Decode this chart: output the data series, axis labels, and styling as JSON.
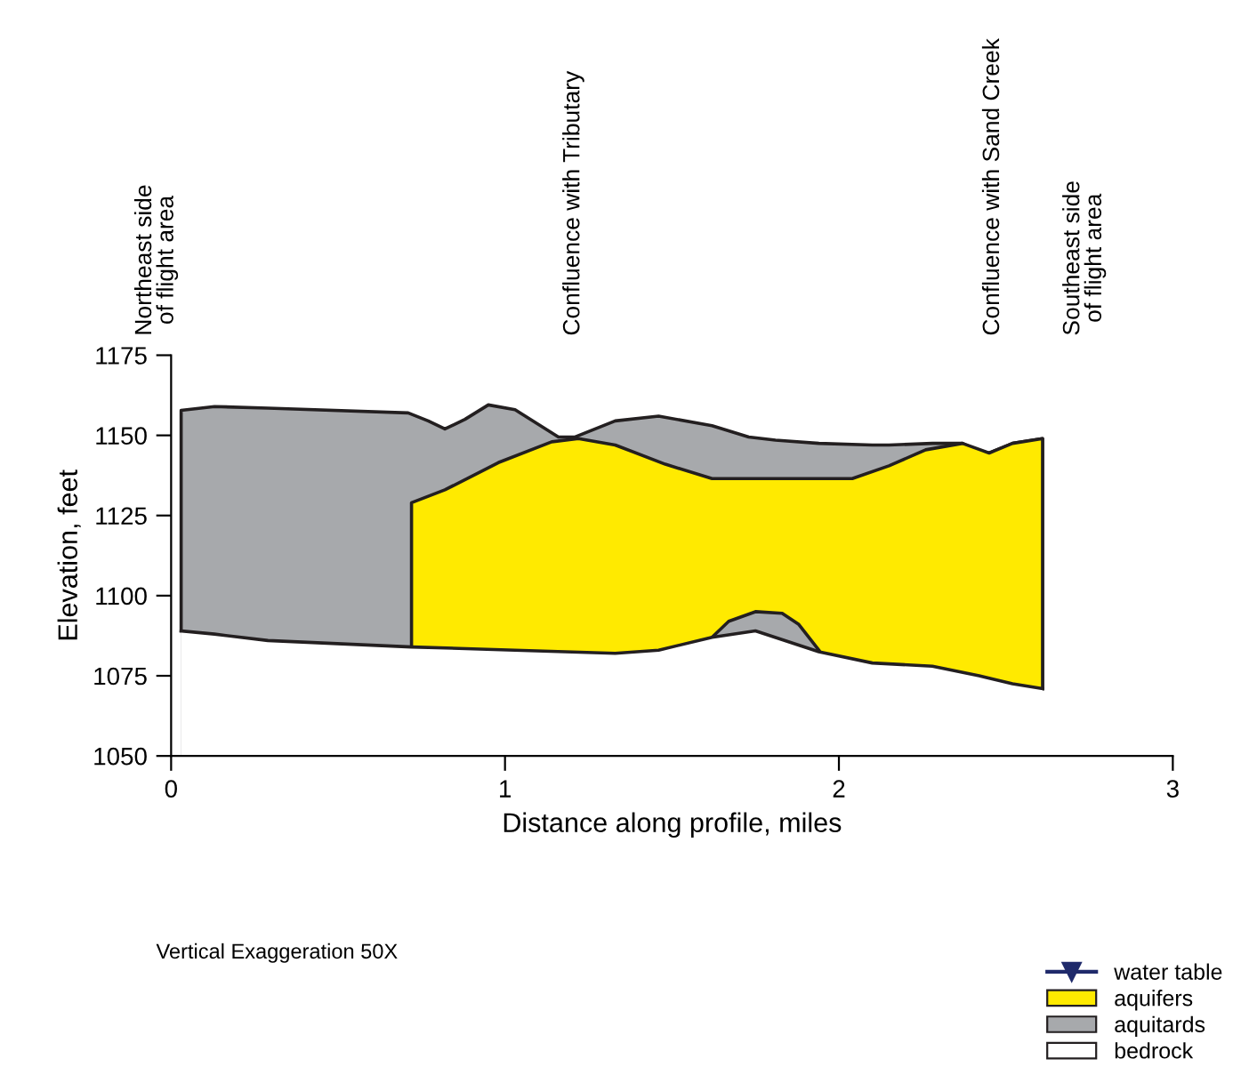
{
  "chart_data": {
    "type": "area",
    "xlabel": "Distance along profile, miles",
    "ylabel": "Elevation, feet",
    "xlim": [
      0,
      3
    ],
    "xticks": [
      0,
      1,
      2,
      3
    ],
    "ylim": [
      1050,
      1175
    ],
    "yticks": [
      1050,
      1075,
      1100,
      1125,
      1150,
      1175
    ],
    "grid": false,
    "legend": "bottom right",
    "annotations": [
      "Northeast side\nof flight area",
      "Confluence with Tributary",
      "Confluence with Sand Creek",
      "Southeast side\nof flight area",
      "Vertical Exaggeration 50X"
    ],
    "series": [
      {
        "name": "aquitards",
        "color": "#a7a9ac",
        "x": [
          0.03,
          0.03,
          0.13,
          0.29,
          0.71,
          0.77,
          0.82,
          0.88,
          0.95,
          1.03,
          1.16,
          1.21,
          1.33,
          1.46,
          1.62,
          1.73,
          1.81,
          1.94,
          2.1,
          2.15,
          2.28,
          2.37,
          2.42,
          2.45,
          2.52,
          2.61,
          2.61
        ],
        "values": [
          1089,
          1157.8,
          1159,
          1158.5,
          1157,
          1154.5,
          1152,
          1155,
          1159.5,
          1158,
          1149.5,
          1149.5,
          1154.5,
          1156,
          1153,
          1149.5,
          1148.5,
          1147.5,
          1147,
          1147,
          1147.5,
          1147.5,
          1145,
          1144.5,
          1147.5,
          1149,
          1071
        ]
      },
      {
        "name": "aquifers",
        "color": "#ffea00",
        "x": [
          0.72,
          0.72,
          0.82,
          0.98,
          1.14,
          1.22,
          1.33,
          1.48,
          1.62,
          1.83,
          2.04,
          2.15,
          2.26,
          2.37,
          2.45,
          2.52,
          2.61,
          2.61
        ],
        "values": [
          1084,
          1129,
          1133,
          1141.5,
          1148,
          1149,
          1147,
          1141,
          1136.5,
          1136.5,
          1136.5,
          1140.5,
          1145.5,
          1147.5,
          1144.5,
          1147.5,
          1149,
          1071
        ]
      },
      {
        "color": "#a7a9ac",
        "x": [
          1.62,
          1.67,
          1.75,
          1.83,
          1.88,
          1.94
        ],
        "values": [
          1087,
          1092,
          1095,
          1094.5,
          1091,
          1083
        ]
      },
      {
        "name": "bedrock",
        "color": "#ffffff",
        "x": [
          0.03,
          0.13,
          0.29,
          0.72,
          1.03,
          1.33,
          1.46,
          1.62,
          1.75,
          1.94,
          2.1,
          2.28,
          2.42,
          2.52,
          2.61
        ],
        "values": [
          1089,
          1088,
          1086,
          1084,
          1083,
          1082,
          1083,
          1087,
          1089,
          1082.5,
          1079,
          1078,
          1075,
          1072.5,
          1071
        ]
      },
      {
        "name": "water table",
        "type": "line",
        "color": "#1f2a6b",
        "marker": "triangle"
      }
    ]
  }
}
